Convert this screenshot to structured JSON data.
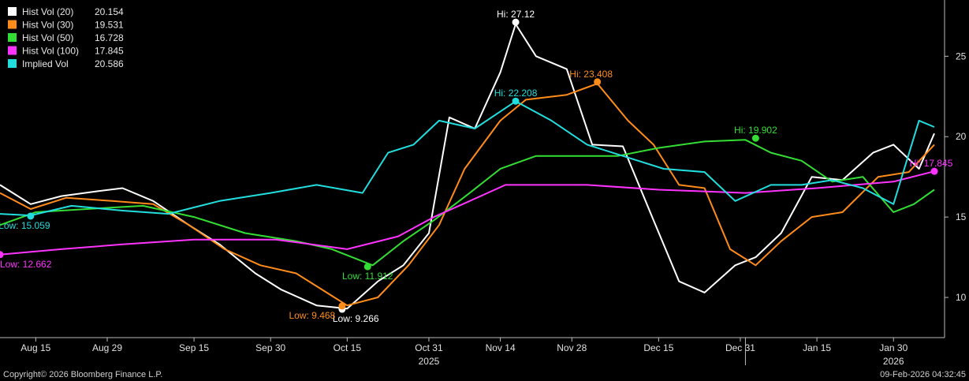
{
  "chart_data": {
    "type": "line",
    "title": "",
    "xlabel": "",
    "ylabel": "",
    "x_range": [
      "2025-08-08",
      "2026-02-09"
    ],
    "ylim": [
      7.5,
      28.5
    ],
    "y_ticks": [
      10,
      15,
      20,
      25
    ],
    "x_ticks": [
      {
        "date": "2025-08-15",
        "label": "Aug 15"
      },
      {
        "date": "2025-08-29",
        "label": "Aug 29"
      },
      {
        "date": "2025-09-15",
        "label": "Sep 15"
      },
      {
        "date": "2025-09-30",
        "label": "Sep 30"
      },
      {
        "date": "2025-10-15",
        "label": "Oct 15"
      },
      {
        "date": "2025-10-31",
        "label": "Oct 31"
      },
      {
        "date": "2025-11-14",
        "label": "Nov 14"
      },
      {
        "date": "2025-11-28",
        "label": "Nov 28"
      },
      {
        "date": "2025-12-15",
        "label": "Dec 15"
      },
      {
        "date": "2025-12-31",
        "label": "Dec 31"
      },
      {
        "date": "2026-01-15",
        "label": "Jan 15"
      },
      {
        "date": "2026-01-30",
        "label": "Jan 30"
      }
    ],
    "year_labels": [
      {
        "date": "2025-10-31",
        "label": "2025"
      },
      {
        "date": "2026-01-30",
        "label": "2026"
      }
    ],
    "year_divider": "2026-01-01",
    "grid": false,
    "legend_position": "top-left",
    "series": [
      {
        "name": "Hist Vol (20)",
        "legend_value": "20.154",
        "color": "#ffffff",
        "x": [
          "2025-08-08",
          "2025-08-14",
          "2025-08-20",
          "2025-08-27",
          "2025-09-01",
          "2025-09-07",
          "2025-09-14",
          "2025-09-20",
          "2025-09-27",
          "2025-10-02",
          "2025-10-09",
          "2025-10-15",
          "2025-10-21",
          "2025-10-26",
          "2025-10-31",
          "2025-11-04",
          "2025-11-09",
          "2025-11-14",
          "2025-11-17",
          "2025-11-21",
          "2025-11-27",
          "2025-12-02",
          "2025-12-08",
          "2025-12-14",
          "2025-12-19",
          "2025-12-24",
          "2025-12-30",
          "2026-01-03",
          "2026-01-08",
          "2026-01-14",
          "2026-01-20",
          "2026-01-26",
          "2026-01-30",
          "2026-02-04",
          "2026-02-07"
        ],
        "y": [
          17.0,
          15.8,
          16.3,
          16.6,
          16.8,
          16.0,
          14.5,
          13.3,
          11.5,
          10.5,
          9.5,
          9.3,
          11.0,
          12.0,
          14.0,
          21.2,
          20.5,
          24.0,
          27.0,
          25.0,
          24.2,
          19.5,
          19.4,
          14.8,
          11.0,
          10.3,
          12.0,
          12.5,
          14.0,
          17.5,
          17.3,
          19.0,
          19.5,
          18.0,
          20.2
        ],
        "low": {
          "x": "2025-10-14",
          "y": 9.266,
          "label": "Low: 9.266"
        },
        "high": {
          "x": "2025-11-17",
          "y": 27.12,
          "label": "Hi: 27.12"
        }
      },
      {
        "name": "Hist Vol (30)",
        "legend_value": "19.531",
        "color": "#ff8c1a",
        "x": [
          "2025-08-08",
          "2025-08-14",
          "2025-08-21",
          "2025-08-30",
          "2025-09-07",
          "2025-09-14",
          "2025-09-21",
          "2025-09-28",
          "2025-10-05",
          "2025-10-10",
          "2025-10-15",
          "2025-10-21",
          "2025-10-27",
          "2025-11-02",
          "2025-11-07",
          "2025-11-14",
          "2025-11-19",
          "2025-11-27",
          "2025-12-03",
          "2025-12-09",
          "2025-12-14",
          "2025-12-19",
          "2025-12-24",
          "2025-12-29",
          "2026-01-03",
          "2026-01-08",
          "2026-01-14",
          "2026-01-20",
          "2026-01-27",
          "2026-02-02",
          "2026-02-07"
        ],
        "y": [
          16.5,
          15.5,
          16.2,
          16.0,
          15.8,
          14.5,
          13.0,
          12.0,
          11.5,
          10.5,
          9.5,
          10.0,
          12.0,
          14.5,
          18.0,
          21.0,
          22.3,
          22.6,
          23.3,
          21.0,
          19.5,
          17.0,
          16.8,
          13.0,
          12.0,
          13.5,
          15.0,
          15.3,
          17.5,
          17.8,
          19.5
        ],
        "low": {
          "x": "2025-10-14",
          "y": 9.468,
          "label": "Low: 9.468"
        },
        "high": {
          "x": "2025-12-03",
          "y": 23.408,
          "label": "Hi: 23.408"
        }
      },
      {
        "name": "Hist Vol (50)",
        "legend_value": "16.728",
        "color": "#33dd33",
        "x": [
          "2025-08-08",
          "2025-08-15",
          "2025-08-25",
          "2025-09-05",
          "2025-09-15",
          "2025-09-25",
          "2025-10-05",
          "2025-10-12",
          "2025-10-20",
          "2025-10-26",
          "2025-11-01",
          "2025-11-08",
          "2025-11-14",
          "2025-11-21",
          "2025-11-29",
          "2025-12-07",
          "2025-12-15",
          "2025-12-24",
          "2026-01-01",
          "2026-01-06",
          "2026-01-12",
          "2026-01-18",
          "2026-01-24",
          "2026-01-30",
          "2026-02-03",
          "2026-02-07"
        ],
        "y": [
          14.5,
          15.3,
          15.5,
          15.7,
          15.0,
          14.0,
          13.5,
          13.0,
          12.0,
          13.5,
          14.8,
          16.5,
          18.0,
          18.8,
          18.8,
          18.8,
          19.3,
          19.7,
          19.8,
          19.0,
          18.5,
          17.2,
          17.5,
          15.3,
          15.8,
          16.7
        ],
        "low": {
          "x": "2025-10-19",
          "y": 11.912,
          "label": "Low: 11.912"
        },
        "high": {
          "x": "2026-01-03",
          "y": 19.902,
          "label": "Hi: 19.902"
        }
      },
      {
        "name": "Hist Vol (100)",
        "legend_value": "17.845",
        "color": "#ff33ff",
        "x": [
          "2025-08-08",
          "2025-08-20",
          "2025-09-01",
          "2025-09-15",
          "2025-10-01",
          "2025-10-15",
          "2025-10-25",
          "2025-11-01",
          "2025-11-08",
          "2025-11-15",
          "2025-12-01",
          "2025-12-15",
          "2026-01-01",
          "2026-01-15",
          "2026-01-30",
          "2026-02-07"
        ],
        "y": [
          12.66,
          13.0,
          13.3,
          13.6,
          13.6,
          13.0,
          13.8,
          15.0,
          16.0,
          17.0,
          17.0,
          16.7,
          16.5,
          16.8,
          17.2,
          17.845
        ],
        "low": {
          "x": "2025-08-08",
          "y": 12.662,
          "label": "Low: 12.662"
        },
        "high": {
          "x": "2026-02-07",
          "y": 17.845,
          "label": "Hi: 17.845"
        }
      },
      {
        "name": "Implied Vol",
        "legend_value": "20.586",
        "color": "#22dddd",
        "x": [
          "2025-08-08",
          "2025-08-14",
          "2025-08-22",
          "2025-09-01",
          "2025-09-10",
          "2025-09-20",
          "2025-09-30",
          "2025-10-09",
          "2025-10-18",
          "2025-10-23",
          "2025-10-28",
          "2025-11-02",
          "2025-11-09",
          "2025-11-17",
          "2025-11-24",
          "2025-12-01",
          "2025-12-08",
          "2025-12-16",
          "2025-12-24",
          "2025-12-30",
          "2026-01-06",
          "2026-01-12",
          "2026-01-18",
          "2026-01-24",
          "2026-01-30",
          "2026-02-04",
          "2026-02-07"
        ],
        "y": [
          15.2,
          15.1,
          15.7,
          15.4,
          15.2,
          16.0,
          16.5,
          17.0,
          16.5,
          19.0,
          19.5,
          21.0,
          20.5,
          22.2,
          21.0,
          19.5,
          18.8,
          18.0,
          17.8,
          16.0,
          17.0,
          17.0,
          17.3,
          16.8,
          15.8,
          21.0,
          20.6
        ],
        "low": {
          "x": "2025-08-14",
          "y": 15.059,
          "label": "Low: 15.059"
        },
        "high": {
          "x": "2025-11-17",
          "y": 22.208,
          "label": "Hi: 22.208"
        }
      }
    ]
  },
  "footer": {
    "copyright": "Copyright© 2026 Bloomberg Finance L.P.",
    "timestamp": "09-Feb-2026 04:32:45"
  }
}
